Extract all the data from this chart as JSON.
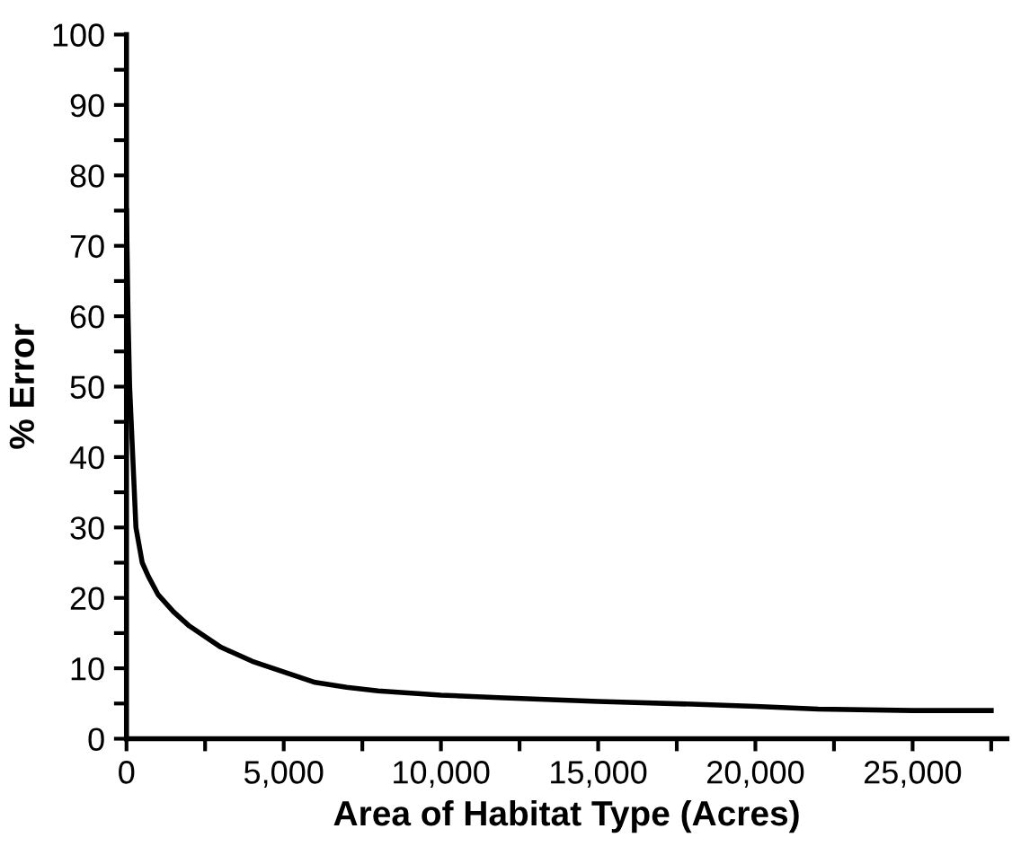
{
  "chart_data": {
    "type": "line",
    "xlabel": "Area of Habitat Type (Acres)",
    "ylabel": "% Error",
    "x": [
      0,
      50,
      100,
      200,
      300,
      500,
      700,
      1000,
      1500,
      2000,
      3000,
      4000,
      5000,
      6000,
      7000,
      8000,
      10000,
      12000,
      15000,
      18000,
      20000,
      22000,
      25000,
      27500
    ],
    "series": [
      {
        "color": "#000000",
        "values": [
          75,
          60,
          50,
          40,
          30,
          25,
          23,
          20.5,
          18,
          16,
          13,
          11,
          9.5,
          8,
          7.3,
          6.8,
          6.2,
          5.8,
          5.3,
          4.9,
          4.6,
          4.2,
          4,
          4
        ]
      }
    ],
    "xlim": [
      0,
      28000
    ],
    "ylim": [
      0,
      100
    ],
    "xticks": [
      0,
      {
        "value": 2500,
        "label": null
      },
      {
        "value": 5000,
        "label": "5,000"
      },
      {
        "value": 7500,
        "label": null
      },
      {
        "value": 10000,
        "label": "10,000"
      },
      {
        "value": 12500,
        "label": null
      },
      {
        "value": 15000,
        "label": "15,000"
      },
      {
        "value": 17500,
        "label": null
      },
      {
        "value": 20000,
        "label": "20,000"
      },
      {
        "value": 22500,
        "label": null
      },
      {
        "value": 25000,
        "label": "25,000"
      },
      {
        "value": 27500,
        "label": null
      }
    ],
    "yticks": [
      0,
      {
        "value": 5,
        "label": null
      },
      10,
      {
        "value": 15,
        "label": null
      },
      20,
      {
        "value": 25,
        "label": null
      },
      30,
      {
        "value": 35,
        "label": null
      },
      40,
      {
        "value": 45,
        "label": null
      },
      50,
      {
        "value": 55,
        "label": null
      },
      60,
      {
        "value": 65,
        "label": null
      },
      70,
      {
        "value": 75,
        "label": null
      },
      80,
      {
        "value": 85,
        "label": null
      },
      90,
      {
        "value": 95,
        "label": null
      },
      100
    ],
    "grid": false,
    "marker": "none",
    "line_style": "solid"
  }
}
